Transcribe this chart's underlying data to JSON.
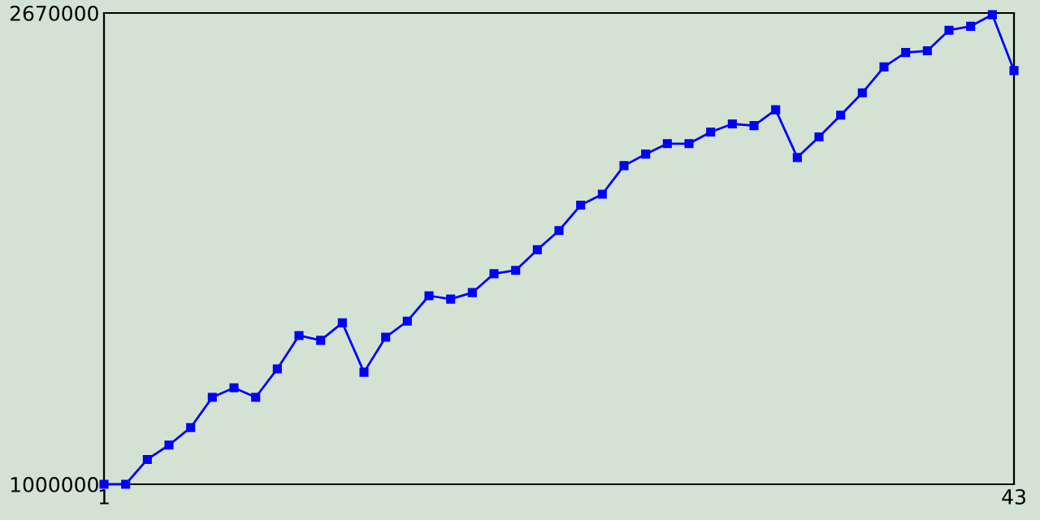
{
  "chart_data": {
    "type": "line",
    "x": [
      1,
      2,
      3,
      4,
      5,
      6,
      7,
      8,
      9,
      10,
      11,
      12,
      13,
      14,
      15,
      16,
      17,
      18,
      19,
      20,
      21,
      22,
      23,
      24,
      25,
      26,
      27,
      28,
      29,
      30,
      31,
      32,
      33,
      34,
      35,
      36,
      37,
      38,
      39,
      40,
      41,
      42,
      43
    ],
    "series": [
      {
        "color": "#0000ff",
        "values": [
          1000000,
          1000000,
          1088000,
          1139000,
          1201000,
          1308000,
          1342000,
          1308000,
          1409000,
          1527000,
          1510000,
          1572000,
          1397000,
          1521000,
          1578000,
          1668000,
          1656000,
          1679000,
          1746000,
          1758000,
          1831000,
          1899000,
          1989000,
          2028000,
          2129000,
          2170000,
          2207000,
          2207000,
          2248000,
          2277000,
          2271000,
          2327000,
          2158000,
          2231000,
          2308000,
          2387000,
          2479000,
          2530000,
          2536000,
          2609000,
          2623000,
          2664000,
          2466000
        ]
      }
    ],
    "xlim": [
      1,
      43
    ],
    "xticks": [
      1,
      43
    ],
    "ylim": [
      1000000,
      2670000
    ],
    "yticks": [
      1000000,
      2670000
    ],
    "marker": "square",
    "line_style": "solid",
    "grid": false,
    "legend": false
  }
}
